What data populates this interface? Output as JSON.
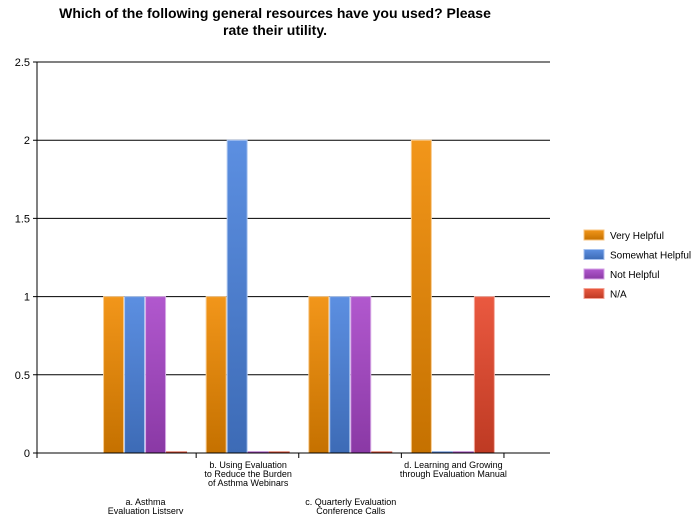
{
  "chart_data": {
    "type": "bar",
    "title_lines": [
      "Which of the following general resources have you used?  Please",
      "rate their utility."
    ],
    "categories": [
      "a. Asthma Evaluation Listserv",
      "b. Using Evaluation to Reduce the Burden of Asthma Webinars",
      "c. Quarterly Evaluation Conference Calls",
      "d. Learning and Growing through Evaluation Manual"
    ],
    "category_label_lines": [
      [
        "a. Asthma",
        "Evaluation Listserv"
      ],
      [
        "b. Using Evaluation",
        "to Reduce the Burden",
        "of Asthma Webinars"
      ],
      [
        "c. Quarterly Evaluation",
        "Conference Calls"
      ],
      [
        "d. Learning and Growing",
        "through Evaluation Manual"
      ]
    ],
    "series": [
      {
        "name": "Very Helpful",
        "values": [
          1,
          1,
          1,
          2
        ],
        "color": "#f08a00"
      },
      {
        "name": "Somewhat Helpful",
        "values": [
          1,
          2,
          1,
          0
        ],
        "color": "#4a82de"
      },
      {
        "name": "Not Helpful",
        "values": [
          1,
          0,
          1,
          0
        ],
        "color": "#a845c9"
      },
      {
        "name": "N/A",
        "values": [
          0,
          0,
          0,
          1
        ],
        "color": "#e8472b"
      }
    ],
    "y_ticks": [
      "0",
      "0.5",
      "1",
      "1.5",
      "2",
      "2.5"
    ],
    "ylim": [
      0,
      2.5
    ],
    "grid": true,
    "legend_position": "right"
  }
}
